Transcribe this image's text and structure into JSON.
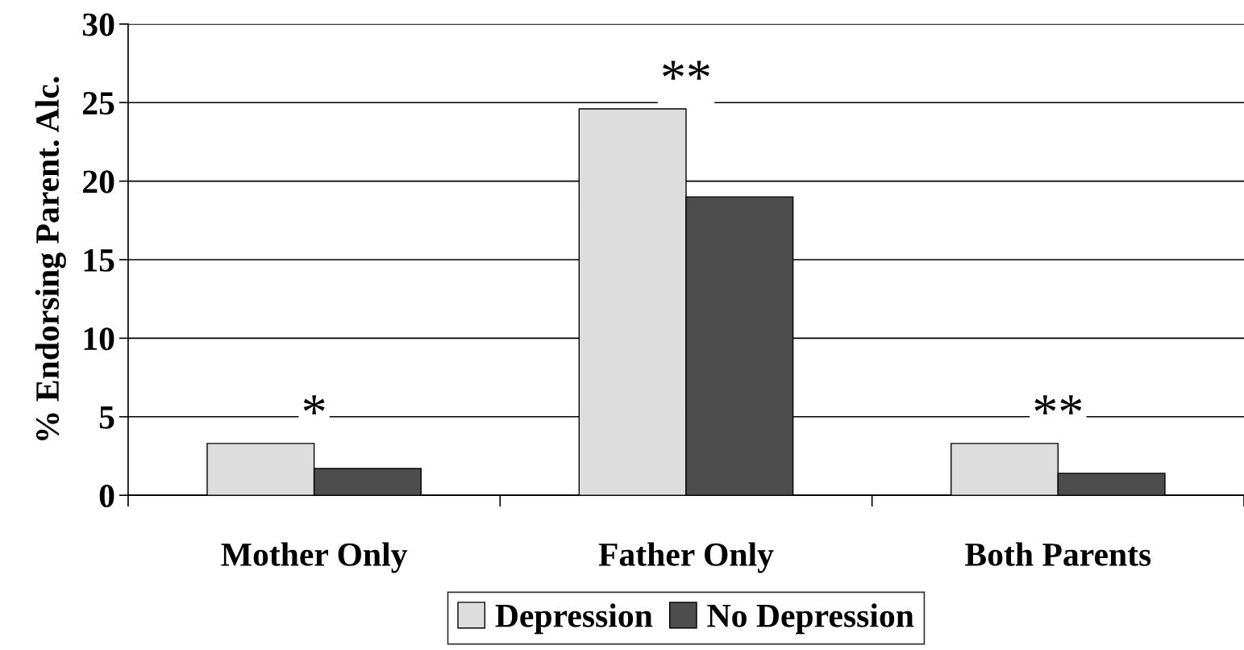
{
  "chart_data": {
    "type": "bar",
    "ylabel": "% Endorsing Parent. Alc.",
    "categories": [
      "Mother Only",
      "Father Only",
      "Both Parents"
    ],
    "series": [
      {
        "name": "Depression",
        "color": "#dddddd",
        "values": [
          3.3,
          24.6,
          3.3
        ]
      },
      {
        "name": "No Depression",
        "color": "#4d4d4d",
        "values": [
          1.7,
          19.0,
          1.4
        ]
      }
    ],
    "ylim": [
      0,
      30
    ],
    "yticks": [
      0,
      5,
      10,
      15,
      20,
      25,
      30
    ],
    "grid": "y",
    "legend": "bottom",
    "annotations": [
      "*",
      "**",
      "**"
    ]
  }
}
